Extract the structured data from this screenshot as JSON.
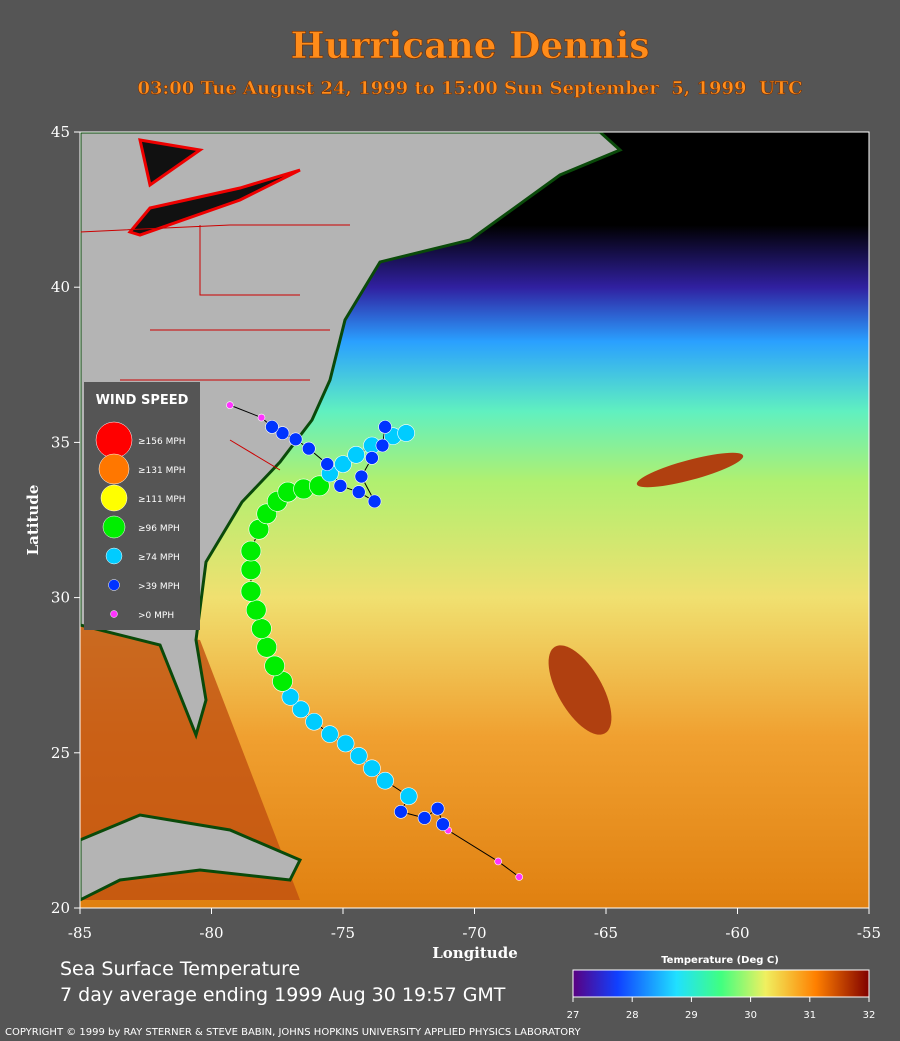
{
  "title": "Hurricane Dennis",
  "subtitle": "03:00 Tue August 24, 1999 to 15:00 Sun September  5, 1999  UTC",
  "map": {
    "xlim": [
      -85,
      -55
    ],
    "ylim": [
      20,
      45
    ],
    "xticks": [
      -85,
      -80,
      -75,
      -70,
      -65,
      -60,
      -55
    ],
    "yticks": [
      20,
      25,
      30,
      35,
      40,
      45
    ],
    "x_label": "Longitude",
    "y_label": "Latitude",
    "legend": {
      "title": "WIND SPEED",
      "items": [
        {
          "label": "≥156 MPH",
          "color": "#ff0000"
        },
        {
          "label": "≥131 MPH",
          "color": "#ff7700"
        },
        {
          "label": "≥111 MPH",
          "color": "#ffff00"
        },
        {
          "label": "≥96 MPH",
          "color": "#00ee00"
        },
        {
          "label": "≥74 MPH",
          "color": "#00ccff"
        },
        {
          "label": ">39 MPH",
          "color": "#0033ff"
        },
        {
          "label": ">0 MPH",
          "color": "#ff33ff"
        }
      ]
    },
    "track": {
      "lon": [
        -68.3,
        -69.1,
        -71.0,
        -71.2,
        -71.4,
        -71.9,
        -72.8,
        -72.5,
        -73.4,
        -73.9,
        -74.4,
        -74.9,
        -75.5,
        -76.1,
        -76.6,
        -77.0,
        -77.3,
        -77.6,
        -77.9,
        -78.1,
        -78.3,
        -78.5,
        -78.5,
        -78.5,
        -78.2,
        -77.9,
        -77.5,
        -77.1,
        -76.5,
        -75.9,
        -75.5,
        -75.0,
        -74.5,
        -73.9,
        -73.1,
        -72.6,
        -73.4,
        -73.5,
        -73.9,
        -74.3,
        -73.8,
        -74.4,
        -75.1,
        -75.6,
        -76.3,
        -76.8,
        -77.3,
        -77.7,
        -78.1,
        -79.3
      ],
      "lat": [
        21.0,
        21.5,
        22.5,
        22.7,
        23.2,
        22.9,
        23.1,
        23.6,
        24.1,
        24.5,
        24.9,
        25.3,
        25.6,
        26.0,
        26.4,
        26.8,
        27.3,
        27.8,
        28.4,
        29.0,
        29.6,
        30.2,
        30.9,
        31.5,
        32.2,
        32.7,
        33.1,
        33.4,
        33.5,
        33.6,
        34.0,
        34.3,
        34.6,
        34.9,
        35.2,
        35.3,
        35.5,
        34.9,
        34.5,
        33.9,
        33.1,
        33.4,
        33.6,
        34.3,
        34.8,
        35.1,
        35.3,
        35.5,
        35.8,
        36.2
      ],
      "colors": [
        "#ff33ff",
        "#ff33ff",
        "#ff33ff",
        "#0033ff",
        "#0033ff",
        "#0033ff",
        "#0033ff",
        "#00ccff",
        "#00ccff",
        "#00ccff",
        "#00ccff",
        "#00ccff",
        "#00ccff",
        "#00ccff",
        "#00ccff",
        "#00ccff",
        "#00ee00",
        "#00ee00",
        "#00ee00",
        "#00ee00",
        "#00ee00",
        "#00ee00",
        "#00ee00",
        "#00ee00",
        "#00ee00",
        "#00ee00",
        "#00ee00",
        "#00ee00",
        "#00ee00",
        "#00ee00",
        "#00ccff",
        "#00ccff",
        "#00ccff",
        "#00ccff",
        "#00ccff",
        "#00ccff",
        "#0033ff",
        "#0033ff",
        "#0033ff",
        "#0033ff",
        "#0033ff",
        "#0033ff",
        "#0033ff",
        "#0033ff",
        "#0033ff",
        "#0033ff",
        "#0033ff",
        "#0033ff",
        "#ff33ff",
        "#ff33ff"
      ]
    }
  },
  "caption": [
    "Sea Surface Temperature",
    "7 day average ending 1999 Aug 30 19:57 GMT"
  ],
  "colorbar": {
    "title": "Temperature (Deg C)",
    "lim": [
      27,
      32
    ],
    "ticks": [
      27,
      28,
      29,
      30,
      31,
      32
    ]
  },
  "copyright": "COPYRIGHT © 1999 by RAY STERNER & STEVE BABIN, JOHNS HOPKINS UNIVERSITY APPLIED PHYSICS LABORATORY"
}
